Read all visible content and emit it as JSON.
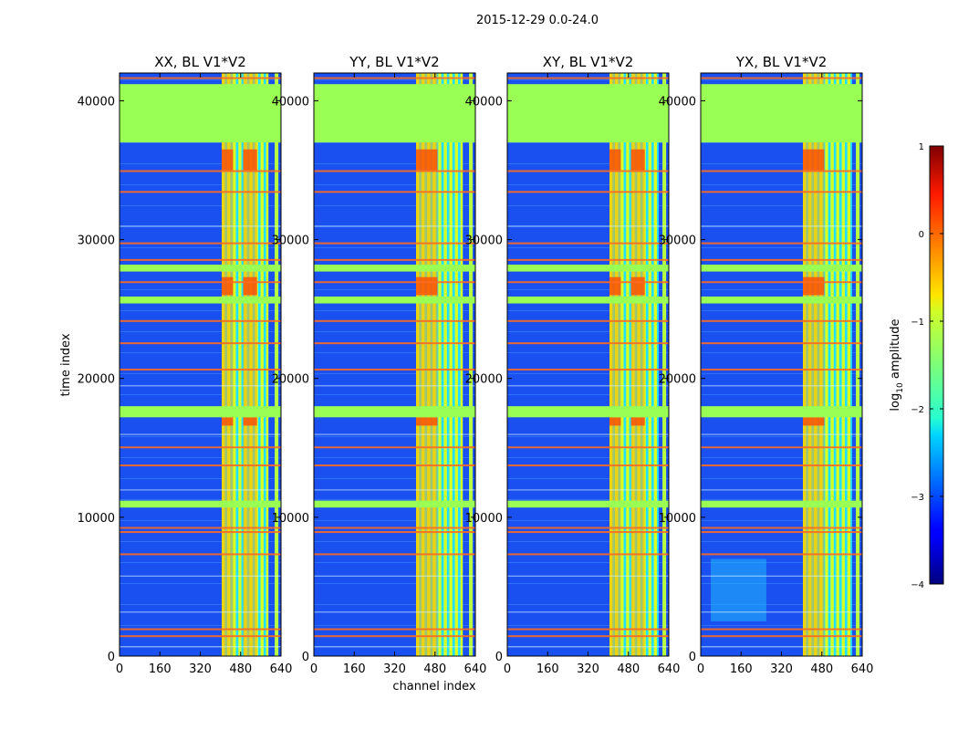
{
  "chart_data": {
    "type": "heatmap",
    "suptitle": "2015-12-29 0.0-24.0",
    "xlabel": "channel index",
    "ylabel": "time index",
    "xlim": [
      0,
      640
    ],
    "ylim": [
      0,
      42000
    ],
    "xticks": [
      0,
      160,
      320,
      480,
      640
    ],
    "yticks": [
      0,
      10000,
      20000,
      30000,
      40000
    ],
    "colormap": "jet",
    "colorbar": {
      "label_main": "log",
      "label_sub": "10",
      "label_rest": " amplitude",
      "range": [
        -4,
        1
      ],
      "ticks": [
        1,
        0,
        -1,
        -2,
        -3,
        -4
      ]
    },
    "panels": [
      {
        "title": "XX, BL V1*V2",
        "bright_band": [
          405,
          590
        ],
        "hot_columns": [
          [
            405,
            450
          ],
          [
            490,
            545
          ]
        ]
      },
      {
        "title": "YY, BL V1*V2",
        "bright_band": [
          405,
          590
        ],
        "hot_columns": [
          [
            405,
            490
          ]
        ]
      },
      {
        "title": "XY, BL V1*V2",
        "bright_band": [
          405,
          600
        ],
        "hot_columns": [
          [
            405,
            450
          ],
          [
            490,
            545
          ]
        ]
      },
      {
        "title": "YX, BL V1*V2",
        "bright_band": [
          405,
          600
        ],
        "hot_columns": [
          [
            405,
            490
          ]
        ]
      }
    ],
    "flagged_time_ranges": [
      [
        37000,
        41200
      ],
      [
        27700,
        28200
      ],
      [
        25400,
        25900
      ],
      [
        17200,
        18000
      ],
      [
        10700,
        11200
      ]
    ],
    "bright_time_ranges": [
      [
        26000,
        27300
      ],
      [
        16600,
        17200
      ],
      [
        35000,
        36500
      ]
    ]
  }
}
